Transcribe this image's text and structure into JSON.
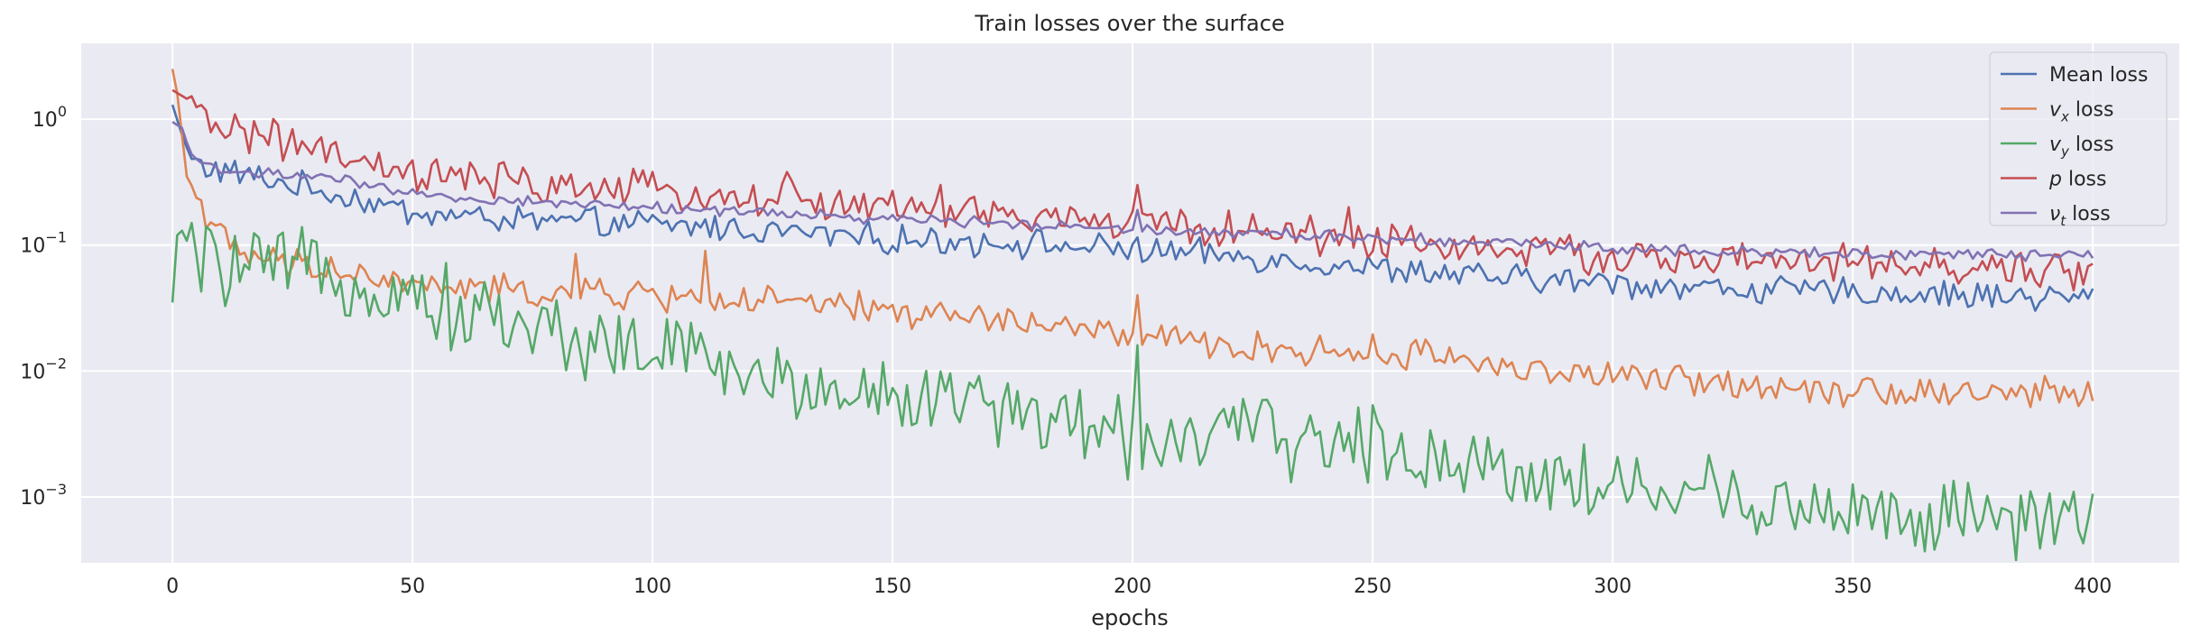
{
  "chart_data": {
    "type": "line",
    "title": "Train losses over the surface",
    "xlabel": "epochs",
    "ylabel": "",
    "yscale": "log",
    "xlim": [
      -19,
      418
    ],
    "ylim": [
      0.0003,
      4.0
    ],
    "xticks": [
      0,
      50,
      100,
      150,
      200,
      250,
      300,
      350,
      400
    ],
    "yticks": [
      {
        "value": 0.001,
        "base": "10",
        "exp": "−3"
      },
      {
        "value": 0.01,
        "base": "10",
        "exp": "−2"
      },
      {
        "value": 0.1,
        "base": "10",
        "exp": "−1"
      },
      {
        "value": 1,
        "base": "10",
        "exp": "0"
      }
    ],
    "grid": true,
    "legend_position": "top-right",
    "background": "#eaeaf2",
    "series": [
      {
        "name": "Mean loss",
        "legend": {
          "sym": "",
          "sub": "",
          "rest": "Mean loss"
        },
        "color": "#4c72b0",
        "anchors": [
          [
            0,
            1.3
          ],
          [
            2,
            0.75
          ],
          [
            4,
            0.47
          ],
          [
            8,
            0.4
          ],
          [
            15,
            0.36
          ],
          [
            25,
            0.3
          ],
          [
            35,
            0.25
          ],
          [
            50,
            0.18
          ],
          [
            75,
            0.155
          ],
          [
            100,
            0.145
          ],
          [
            125,
            0.13
          ],
          [
            150,
            0.11
          ],
          [
            175,
            0.105
          ],
          [
            200,
            0.09
          ],
          [
            225,
            0.08
          ],
          [
            250,
            0.065
          ],
          [
            275,
            0.055
          ],
          [
            300,
            0.05
          ],
          [
            325,
            0.045
          ],
          [
            350,
            0.042
          ],
          [
            375,
            0.04
          ],
          [
            400,
            0.038
          ]
        ],
        "spikes": [
          [
            201,
            0.115
          ],
          [
            245,
            0.075
          ],
          [
            111,
            0.16
          ]
        ],
        "noise": 0.09
      },
      {
        "name": "v_x loss",
        "legend": {
          "sym": "v",
          "sub": "x",
          "rest": " loss"
        },
        "color": "#dd8452",
        "anchors": [
          [
            0,
            2.5
          ],
          [
            1,
            1.6
          ],
          [
            3,
            0.35
          ],
          [
            5,
            0.25
          ],
          [
            8,
            0.16
          ],
          [
            12,
            0.09
          ],
          [
            20,
            0.075
          ],
          [
            35,
            0.06
          ],
          [
            50,
            0.048
          ],
          [
            75,
            0.042
          ],
          [
            100,
            0.04
          ],
          [
            125,
            0.035
          ],
          [
            150,
            0.03
          ],
          [
            175,
            0.025
          ],
          [
            199,
            0.019
          ],
          [
            210,
            0.017
          ],
          [
            225,
            0.015
          ],
          [
            250,
            0.014
          ],
          [
            270,
            0.013
          ],
          [
            275,
            0.011
          ],
          [
            300,
            0.009
          ],
          [
            325,
            0.008
          ],
          [
            350,
            0.0072
          ],
          [
            375,
            0.0068
          ],
          [
            400,
            0.0065
          ]
        ],
        "spikes": [
          [
            201,
            0.04
          ],
          [
            111,
            0.09
          ],
          [
            84,
            0.085
          ],
          [
            33,
            0.08
          ]
        ],
        "noise": 0.1
      },
      {
        "name": "v_y loss",
        "legend": {
          "sym": "v",
          "sub": "y",
          "rest": " loss"
        },
        "color": "#55a868",
        "anchors": [
          [
            0,
            0.035
          ],
          [
            1,
            0.12
          ],
          [
            2,
            0.13
          ],
          [
            5,
            0.075
          ],
          [
            15,
            0.065
          ],
          [
            25,
            0.062
          ],
          [
            35,
            0.058
          ],
          [
            50,
            0.04
          ],
          [
            60,
            0.03
          ],
          [
            75,
            0.022
          ],
          [
            100,
            0.014
          ],
          [
            110,
            0.013
          ],
          [
            125,
            0.008
          ],
          [
            150,
            0.0065
          ],
          [
            175,
            0.005
          ],
          [
            190,
            0.0035
          ],
          [
            199,
            0.003
          ],
          [
            205,
            0.003
          ],
          [
            225,
            0.0032
          ],
          [
            250,
            0.0025
          ],
          [
            275,
            0.0018
          ],
          [
            300,
            0.0012
          ],
          [
            325,
            0.001
          ],
          [
            350,
            0.00075
          ],
          [
            375,
            0.00065
          ],
          [
            400,
            0.00058
          ]
        ],
        "spikes": [
          [
            201,
            0.016
          ],
          [
            110,
            0.02
          ],
          [
            157,
            0.01
          ],
          [
            356,
            0.0011
          ]
        ],
        "noise": 0.25
      },
      {
        "name": "p loss",
        "legend": {
          "sym": "p",
          "sub": "",
          "rest": " loss"
        },
        "color": "#c44e52",
        "anchors": [
          [
            0,
            1.7
          ],
          [
            3,
            1.45
          ],
          [
            5,
            1.05
          ],
          [
            10,
            0.9
          ],
          [
            20,
            0.72
          ],
          [
            30,
            0.55
          ],
          [
            40,
            0.42
          ],
          [
            50,
            0.36
          ],
          [
            75,
            0.3
          ],
          [
            100,
            0.27
          ],
          [
            125,
            0.23
          ],
          [
            150,
            0.2
          ],
          [
            175,
            0.17
          ],
          [
            200,
            0.15
          ],
          [
            225,
            0.13
          ],
          [
            250,
            0.11
          ],
          [
            275,
            0.095
          ],
          [
            300,
            0.08
          ],
          [
            325,
            0.075
          ],
          [
            350,
            0.07
          ],
          [
            375,
            0.065
          ],
          [
            400,
            0.06
          ]
        ],
        "spikes": [
          [
            201,
            0.3
          ],
          [
            160,
            0.3
          ],
          [
            128,
            0.38
          ],
          [
            245,
            0.2
          ]
        ],
        "noise": 0.12
      },
      {
        "name": "nu_t loss",
        "legend": {
          "sym": "ν",
          "sub": "t",
          "rest": " loss"
        },
        "color": "#8172b3",
        "anchors": [
          [
            0,
            0.95
          ],
          [
            2,
            0.85
          ],
          [
            4,
            0.5
          ],
          [
            10,
            0.39
          ],
          [
            20,
            0.37
          ],
          [
            30,
            0.35
          ],
          [
            40,
            0.3
          ],
          [
            50,
            0.25
          ],
          [
            75,
            0.22
          ],
          [
            100,
            0.2
          ],
          [
            125,
            0.18
          ],
          [
            150,
            0.16
          ],
          [
            175,
            0.15
          ],
          [
            200,
            0.135
          ],
          [
            225,
            0.125
          ],
          [
            250,
            0.115
          ],
          [
            275,
            0.105
          ],
          [
            300,
            0.095
          ],
          [
            325,
            0.09
          ],
          [
            350,
            0.086
          ],
          [
            375,
            0.084
          ],
          [
            400,
            0.082
          ]
        ],
        "spikes": [
          [
            201,
            0.19
          ]
        ],
        "noise": 0.035
      }
    ]
  }
}
